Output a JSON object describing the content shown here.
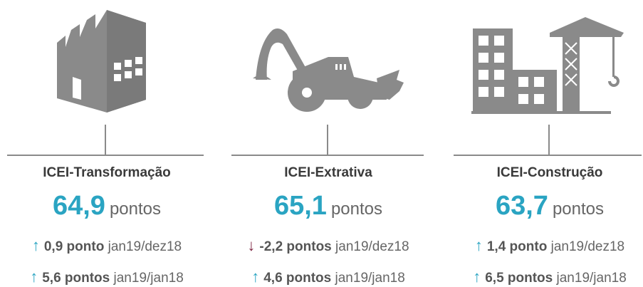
{
  "panels": [
    {
      "title": "ICEI-Transformação",
      "value": "64,9",
      "unit": "pontos",
      "changes": [
        {
          "value": "0,9 ponto",
          "period": "jan19/dez18"
        },
        {
          "value": "5,6 pontos",
          "period": "jan19/jan18"
        }
      ]
    },
    {
      "title": "ICEI-Extrativa",
      "value": "65,1",
      "unit": "pontos",
      "changes": [
        {
          "value": "-2,2 pontos",
          "period": "jan19/dez18"
        },
        {
          "value": "4,6 pontos",
          "period": "jan19/jan18"
        }
      ]
    },
    {
      "title": "ICEI-Construção",
      "value": "63,7",
      "unit": "pontos",
      "changes": [
        {
          "value": "1,4 ponto",
          "period": "jan19/dez18"
        },
        {
          "value": "6,5 pontos",
          "period": "jan19/jan18"
        }
      ]
    }
  ]
}
